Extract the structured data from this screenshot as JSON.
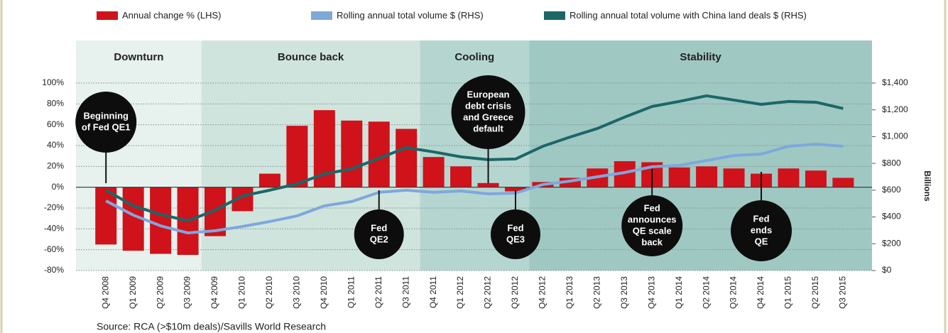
{
  "chart_data": {
    "type": "bar",
    "categories": [
      "Q4 2008",
      "Q1 2009",
      "Q2 2009",
      "Q3 2009",
      "Q4 2009",
      "Q1 2010",
      "Q2 2010",
      "Q3 2010",
      "Q4 2010",
      "Q1 2011",
      "Q2 2011",
      "Q3 2011",
      "Q4 2011",
      "Q1 2012",
      "Q2 2012",
      "Q3 2012",
      "Q4 2012",
      "Q1 2013",
      "Q2 2013",
      "Q3 2013",
      "Q4 2013",
      "Q1 2014",
      "Q2 2014",
      "Q3 2014",
      "Q4 2014",
      "Q1 2015",
      "Q2 2015",
      "Q3 2015"
    ],
    "series": [
      {
        "name": "Annual change % (LHS)",
        "type": "bar",
        "axis": "y",
        "color": "#d0121b",
        "values": [
          -55,
          -61,
          -64,
          -65,
          -47,
          -23,
          13,
          59,
          74,
          64,
          63,
          56,
          29,
          20,
          4,
          -4,
          5,
          9,
          18,
          25,
          24,
          19,
          20,
          18,
          13,
          18,
          16,
          9
        ]
      },
      {
        "name": "Rolling annual total volume $ (RHS)",
        "type": "line",
        "axis": "y2",
        "color": "#7ea8dc",
        "values": [
          520,
          414,
          334,
          281,
          297,
          329,
          366,
          408,
          483,
          515,
          584,
          600,
          584,
          594,
          573,
          578,
          642,
          668,
          700,
          732,
          775,
          785,
          822,
          859,
          870,
          928,
          944,
          928
        ]
      },
      {
        "name": "Rolling annual total volume with China land deals $ (RHS)",
        "type": "line",
        "axis": "y2",
        "color": "#1b6767",
        "values": [
          600,
          483,
          419,
          371,
          451,
          557,
          600,
          647,
          722,
          759,
          838,
          918,
          886,
          849,
          828,
          833,
          928,
          997,
          1061,
          1146,
          1225,
          1263,
          1305,
          1273,
          1241,
          1263,
          1257,
          1210
        ]
      }
    ],
    "ylim": [
      -80,
      100
    ],
    "yticks": [
      {
        "value": -80,
        "label": "-80%"
      },
      {
        "value": -60,
        "label": "-60%"
      },
      {
        "value": -40,
        "label": "-40%"
      },
      {
        "value": -20,
        "label": "-20%"
      },
      {
        "value": 0,
        "label": "0%"
      },
      {
        "value": 20,
        "label": "20%"
      },
      {
        "value": 40,
        "label": "40%"
      },
      {
        "value": 60,
        "label": "60%"
      },
      {
        "value": 80,
        "label": "80%"
      },
      {
        "value": 100,
        "label": "100%"
      }
    ],
    "y2lim": [
      0,
      1400
    ],
    "y2ticks": [
      {
        "value": 0,
        "label": "$0"
      },
      {
        "value": 200,
        "label": "$200"
      },
      {
        "value": 400,
        "label": "$400"
      },
      {
        "value": 600,
        "label": "$600"
      },
      {
        "value": 800,
        "label": "$800"
      },
      {
        "value": 1000,
        "label": "$1,000"
      },
      {
        "value": 1200,
        "label": "$1,200"
      },
      {
        "value": 1400,
        "label": "$1,400"
      }
    ],
    "y2label": "Billions",
    "grid": true,
    "phases": [
      {
        "name": "Downturn",
        "start": "Q4 2008",
        "end": "Q3 2009",
        "color": "#e7f1ed"
      },
      {
        "name": "Bounce back",
        "start": "Q4 2009",
        "end": "Q3 2011",
        "color": "#d0e4de"
      },
      {
        "name": "Cooling",
        "start": "Q4 2011",
        "end": "Q3 2012",
        "color": "#b5d6d0"
      },
      {
        "name": "Stability",
        "start": "Q4 2012",
        "end": "Q3 2015",
        "color": "#a0c8c3"
      }
    ],
    "annotations": [
      {
        "lines": [
          "Beginning",
          "of Fed QE1"
        ],
        "category": "Q4 2008"
      },
      {
        "lines": [
          "Fed",
          "QE2"
        ],
        "category": "Q2 2011"
      },
      {
        "lines": [
          "European",
          "debt crisis",
          "and Greece",
          "default"
        ],
        "category": "Q2 2012"
      },
      {
        "lines": [
          "Fed",
          "QE3"
        ],
        "category": "Q3 2012"
      },
      {
        "lines": [
          "Fed",
          "announces",
          "QE scale",
          "back"
        ],
        "category": "Q4 2013"
      },
      {
        "lines": [
          "Fed",
          "ends",
          "QE"
        ],
        "category": "Q4 2014"
      }
    ],
    "source": "Source: RCA (>$10m deals)/Savills World Research"
  }
}
